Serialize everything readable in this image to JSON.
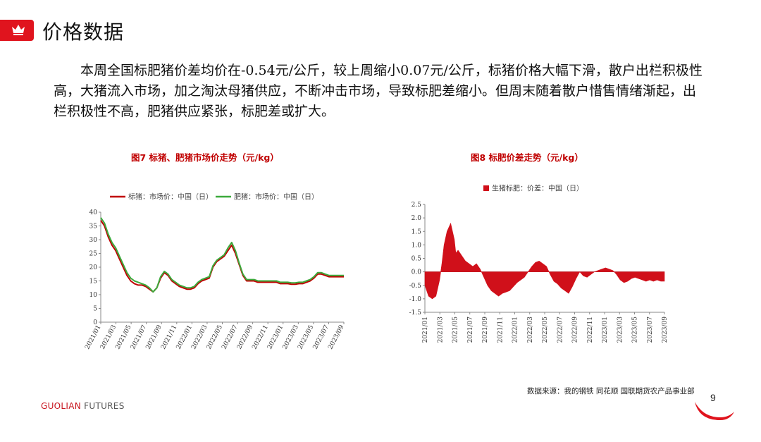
{
  "header": {
    "title": "价格数据",
    "accent_color": "#e0141e",
    "icon": "crown-icon"
  },
  "summary": "本周全国标肥猪价差均价在-0.54元/公斤，较上周缩小0.07元/公斤，标猪价格大幅下滑，散户出栏积极性高，大猪流入市场，加之淘汰母猪供应，不断冲击市场，导致标肥差缩小。但周末随着散户惜售情绪渐起，出栏积极性不高，肥猪供应紧张，标肥差或扩大。",
  "footer": {
    "source": "数据来源：我的钢铁  同花顺  国联期货农产品事业部",
    "brand_primary": "GUOLIAN",
    "brand_secondary": "FUTURES",
    "page_number": "9"
  },
  "chart_data": [
    {
      "type": "line",
      "title": "图7   标猪、肥猪市场价走势（元/kg）",
      "xlabel": "",
      "ylabel": "",
      "ylim": [
        0,
        40
      ],
      "y_ticks": [
        "0",
        "5",
        "10",
        "15",
        "20",
        "25",
        "30",
        "35",
        "40"
      ],
      "x_ticks": [
        "2021/01",
        "2021/03",
        "2021/05",
        "2021/07",
        "2021/09",
        "2021/11",
        "2022/01",
        "2022/03",
        "2022/05",
        "2022/07",
        "2022/09",
        "2022/11",
        "2023/01",
        "2023/03",
        "2023/05",
        "2023/07",
        "2023/09"
      ],
      "x": [
        0,
        0.5,
        1,
        1.5,
        2,
        2.5,
        3,
        3.5,
        4,
        4.5,
        5,
        5.5,
        6,
        6.5,
        7,
        7.5,
        8,
        8.5,
        9,
        9.5,
        10,
        10.5,
        11,
        11.5,
        12,
        12.5,
        13,
        13.5,
        14,
        14.5,
        15,
        15.5,
        16,
        16.5,
        17,
        17.5,
        18,
        18.5,
        19,
        19.5,
        20,
        20.5,
        21,
        21.5,
        22,
        22.5,
        23,
        23.5,
        24,
        24.5,
        25,
        25.5,
        26,
        26.5,
        27,
        27.5,
        28,
        28.5,
        29,
        29.5,
        30,
        30.5,
        31,
        31.5,
        32,
        32.5
      ],
      "grid": false,
      "legend_position": "top",
      "series": [
        {
          "name": "标猪：市场价：中国（日）",
          "color": "#c00000",
          "values": [
            37,
            35,
            31,
            28,
            26,
            23,
            20,
            17,
            15,
            14,
            13.5,
            13.5,
            13,
            12,
            11,
            12.5,
            16,
            18,
            17,
            15,
            14,
            13,
            12.5,
            12,
            12,
            12.5,
            14,
            15,
            15.5,
            16,
            20,
            22,
            23,
            24,
            26,
            28,
            25,
            21,
            17,
            15,
            15,
            15,
            14.5,
            14.5,
            14.5,
            14.5,
            14.5,
            14.5,
            14,
            14,
            14,
            13.8,
            13.8,
            14,
            14,
            14.5,
            15,
            16,
            17.5,
            17.5,
            17,
            16.5,
            16.5,
            16.5,
            16.5,
            16.5
          ]
        },
        {
          "name": "肥猪：市场价：中国（日）",
          "color": "#3caa3c",
          "values": [
            38,
            36,
            32,
            29,
            27,
            24,
            21,
            18,
            16,
            15,
            14.5,
            14,
            13.5,
            12.5,
            11,
            12.5,
            16.5,
            18.5,
            17.5,
            15.5,
            14.5,
            13.5,
            13,
            12.5,
            12.5,
            13,
            14.5,
            15.5,
            16,
            16.5,
            20.5,
            22.5,
            23.5,
            24.5,
            27,
            29,
            26,
            21.5,
            17.5,
            15.5,
            15.5,
            15.5,
            15,
            15,
            15,
            15,
            15,
            15,
            14.5,
            14.5,
            14.5,
            14.3,
            14.3,
            14.5,
            14.5,
            15,
            15.5,
            16.5,
            18,
            18,
            17.5,
            17,
            17,
            17,
            17,
            17
          ]
        }
      ]
    },
    {
      "type": "area",
      "title": "图8  标肥价差走势（元/kg）",
      "xlabel": "",
      "ylabel": "",
      "ylim": [
        -1.5,
        2.5
      ],
      "y_ticks": [
        "-1.5",
        "-1.0",
        "-0.5",
        "0.0",
        "0.5",
        "1.0",
        "1.5",
        "2.0",
        "2.5"
      ],
      "x_ticks": [
        "2021/01",
        "2021/03",
        "2021/05",
        "2021/07",
        "2021/09",
        "2021/11",
        "2022/01",
        "2022/03",
        "2022/05",
        "2022/07",
        "2022/09",
        "2022/11",
        "2023/01",
        "2023/03",
        "2023/05",
        "2023/07",
        "2023/09"
      ],
      "grid": false,
      "legend_position": "top",
      "series": [
        {
          "name": "生猪标肥：价差：中国（日）",
          "color": "#d0101a",
          "x": [
            0,
            0.5,
            1,
            1.5,
            2,
            2.3,
            2.6,
            3,
            3.5,
            4,
            4.2,
            4.5,
            5,
            5.5,
            6,
            6.5,
            7,
            7.5,
            8,
            8.5,
            9,
            9.5,
            10,
            10.5,
            11,
            11.5,
            12,
            12.5,
            13,
            13.5,
            14,
            14.5,
            15,
            15.5,
            16,
            16.5,
            17,
            17.5,
            18,
            18.5,
            19,
            19.5,
            20,
            20.5,
            21,
            21.5,
            22,
            22.5,
            23,
            23.5,
            24,
            24.5,
            25,
            25.5,
            26,
            26.5,
            27,
            27.5,
            28,
            28.5,
            29,
            29.5,
            30,
            30.5,
            31,
            31.5,
            32,
            32.5
          ],
          "values": [
            -0.5,
            -0.9,
            -1.0,
            -0.9,
            -0.3,
            0.3,
            1.0,
            1.5,
            1.8,
            1.2,
            0.7,
            0.8,
            0.6,
            0.4,
            0.3,
            0.2,
            0.3,
            0.1,
            -0.2,
            -0.5,
            -0.7,
            -0.8,
            -0.9,
            -0.8,
            -0.75,
            -0.7,
            -0.55,
            -0.4,
            -0.3,
            -0.2,
            0.0,
            0.2,
            0.35,
            0.4,
            0.3,
            0.2,
            -0.1,
            -0.35,
            -0.45,
            -0.6,
            -0.7,
            -0.8,
            -0.55,
            -0.25,
            0.0,
            -0.15,
            -0.2,
            -0.1,
            0.0,
            0.05,
            0.1,
            0.15,
            0.1,
            0.05,
            -0.1,
            -0.3,
            -0.4,
            -0.35,
            -0.25,
            -0.2,
            -0.25,
            -0.3,
            -0.35,
            -0.3,
            -0.35,
            -0.3,
            -0.35,
            -0.35
          ]
        }
      ]
    }
  ]
}
